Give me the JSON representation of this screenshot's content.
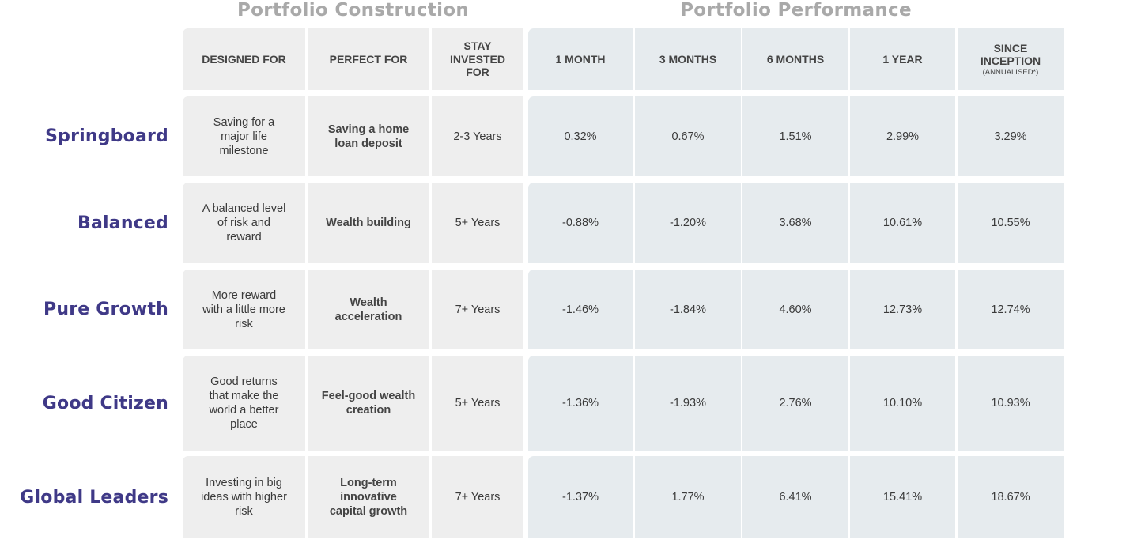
{
  "sections": {
    "construction": "Portfolio Construction",
    "performance": "Portfolio Performance"
  },
  "headers": {
    "designed_for": "DESIGNED FOR",
    "perfect_for": "PERFECT FOR",
    "stay_invested": "STAY\nINVESTED\nFOR",
    "m1": "1 MONTH",
    "m3": "3 MONTHS",
    "m6": "6 MONTHS",
    "y1": "1 YEAR",
    "since": "SINCE\nINCEPTION",
    "since_sub": "(ANNUALISED*)"
  },
  "rows": [
    {
      "name": "Springboard",
      "designed_for": "Saving for a\nmajor life\nmilestone",
      "perfect_for": "Saving a home\nloan deposit",
      "stay": "2-3 Years",
      "m1": "0.32%",
      "m3": "0.67%",
      "m6": "1.51%",
      "y1": "2.99%",
      "since": "3.29%"
    },
    {
      "name": "Balanced",
      "designed_for": "A balanced level\nof risk and\nreward",
      "perfect_for": "Wealth building",
      "stay": "5+ Years",
      "m1": "-0.88%",
      "m3": "-1.20%",
      "m6": "3.68%",
      "y1": "10.61%",
      "since": "10.55%"
    },
    {
      "name": "Pure Growth",
      "designed_for": "More reward\nwith a little more\nrisk",
      "perfect_for": "Wealth\nacceleration",
      "stay": "7+ Years",
      "m1": "-1.46%",
      "m3": "-1.84%",
      "m6": "4.60%",
      "y1": "12.73%",
      "since": "12.74%"
    },
    {
      "name": "Good Citizen",
      "designed_for": "Good returns\nthat make the\nworld a better\nplace",
      "perfect_for": "Feel-good wealth\ncreation",
      "stay": "5+ Years",
      "m1": "-1.36%",
      "m3": "-1.93%",
      "m6": "2.76%",
      "y1": "10.10%",
      "since": "10.93%"
    },
    {
      "name": "Global Leaders",
      "designed_for": "Investing in big\nideas with higher\nrisk",
      "perfect_for": "Long-term\ninnovative\ncapital growth",
      "stay": "7+ Years",
      "m1": "-1.37%",
      "m3": "1.77%",
      "m6": "6.41%",
      "y1": "15.41%",
      "since": "18.67%"
    }
  ],
  "colors": {
    "construction_cell": "#eeeeee",
    "performance_cell": "#e6ebee",
    "row_label": "#3f3987",
    "section_title": "#a9a9a9"
  }
}
